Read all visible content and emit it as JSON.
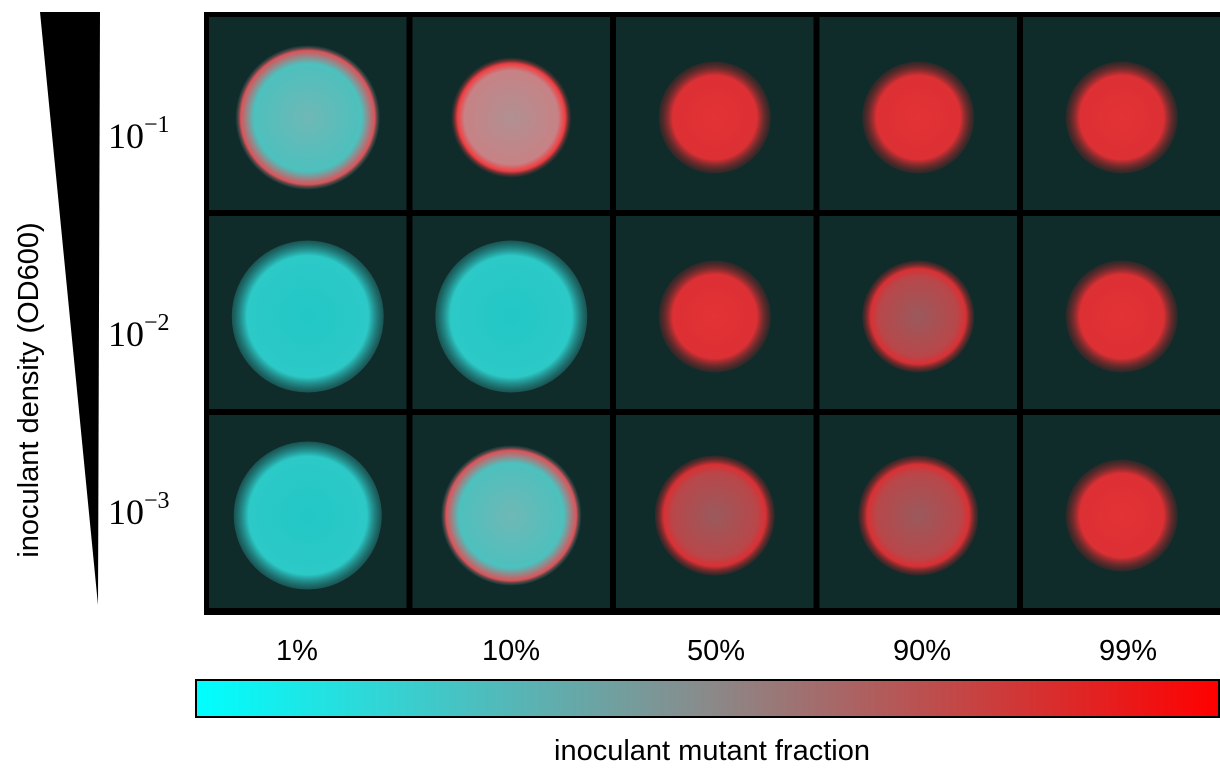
{
  "figure": {
    "y_axis_label": "inoculant density (OD600)",
    "row_labels": [
      {
        "base": "10",
        "exponent": "−1"
      },
      {
        "base": "10",
        "exponent": "−2"
      },
      {
        "base": "10",
        "exponent": "−3"
      }
    ],
    "column_labels": [
      "1%",
      "10%",
      "50%",
      "90%",
      "99%"
    ],
    "colorbar_label": "inoculant mutant fraction"
  }
}
